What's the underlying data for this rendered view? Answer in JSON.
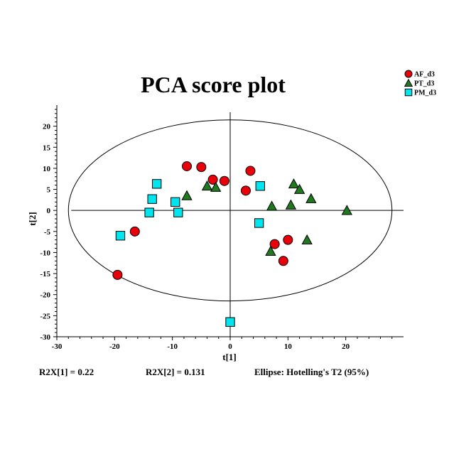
{
  "chart_data": {
    "type": "scatter",
    "title": "PCA score plot",
    "xlabel": "t[1]",
    "ylabel": "t[2]",
    "xlim": [
      -30,
      30
    ],
    "ylim": [
      -30,
      25
    ],
    "xticks": [
      -30,
      -20,
      -10,
      0,
      10,
      20
    ],
    "yticks": [
      -30,
      -25,
      -20,
      -15,
      -10,
      -5,
      0,
      5,
      10,
      15,
      20
    ],
    "grid": false,
    "legend_position": "top-right",
    "ellipse": {
      "label": "Ellipse: Hotelling's T2 (95%)",
      "rx": 28,
      "ry": 21.5
    },
    "series": [
      {
        "name": "AF_d3",
        "marker": "circle",
        "color": "#e8000b",
        "points": [
          [
            -7.5,
            10.5
          ],
          [
            -5,
            10.3
          ],
          [
            -3,
            7.3
          ],
          [
            -1,
            7
          ],
          [
            3.5,
            9.4
          ],
          [
            2.7,
            4.7
          ],
          [
            -16.5,
            -5
          ],
          [
            -19.5,
            -15.3
          ],
          [
            7.7,
            -8
          ],
          [
            10,
            -7
          ],
          [
            9.2,
            -12
          ]
        ]
      },
      {
        "name": "PT_d3",
        "marker": "triangle",
        "color": "#1f7a1f",
        "points": [
          [
            -7.5,
            3.5
          ],
          [
            -4,
            5.8
          ],
          [
            -2.5,
            5.5
          ],
          [
            11,
            6.3
          ],
          [
            12,
            5
          ],
          [
            14,
            2.8
          ],
          [
            7.2,
            1
          ],
          [
            10.5,
            1.3
          ],
          [
            20.2,
            0
          ],
          [
            13.3,
            -7
          ],
          [
            7,
            -9.7
          ]
        ]
      },
      {
        "name": "PM_d3",
        "marker": "square",
        "color": "#00e5ee",
        "points": [
          [
            -12.7,
            6.3
          ],
          [
            -13.5,
            2.7
          ],
          [
            -9.5,
            2
          ],
          [
            -14,
            -0.5
          ],
          [
            -9,
            -0.5
          ],
          [
            -19,
            -6
          ],
          [
            5.2,
            5.8
          ],
          [
            5,
            -3
          ],
          [
            0,
            -26.5
          ]
        ]
      }
    ]
  },
  "stats": {
    "r2x1": "R2X[1] = 0.22",
    "r2x2": "R2X[2] = 0.131"
  }
}
